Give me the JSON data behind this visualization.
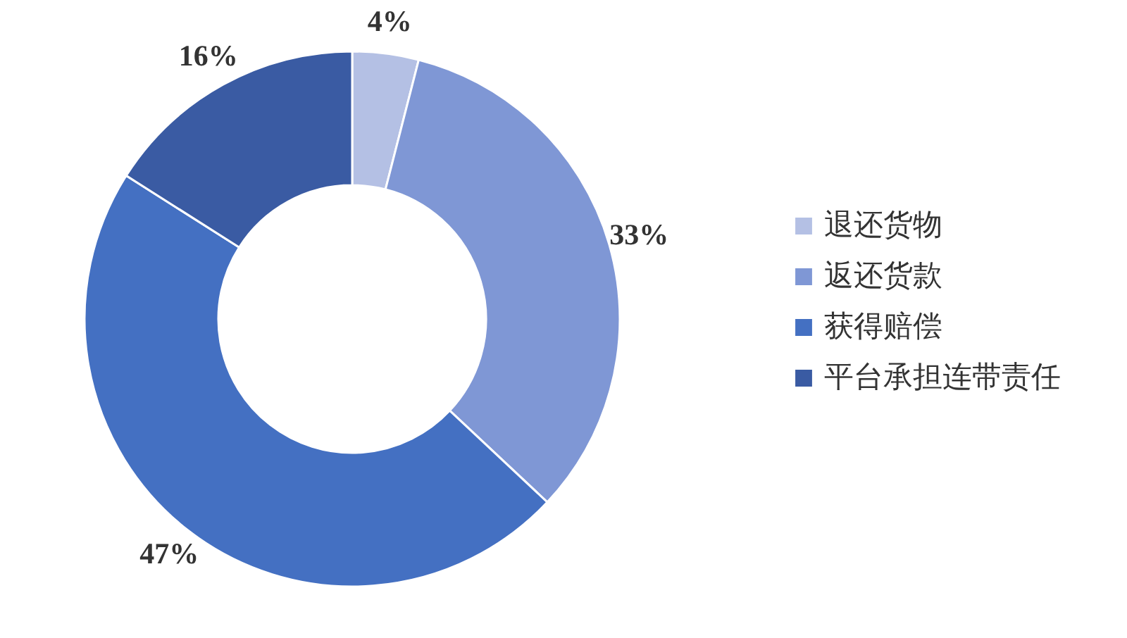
{
  "chart_data": {
    "type": "donut",
    "categories": [
      "退还货物",
      "返还货款",
      "获得赔偿",
      "平台承担连带责任"
    ],
    "values": [
      4,
      33,
      47,
      16
    ],
    "colors": [
      "#b4c0e4",
      "#7f97d5",
      "#4470c2",
      "#3a5ba3"
    ],
    "value_labels": [
      "4%",
      "33%",
      "47%",
      "16%"
    ],
    "legend": "right"
  }
}
